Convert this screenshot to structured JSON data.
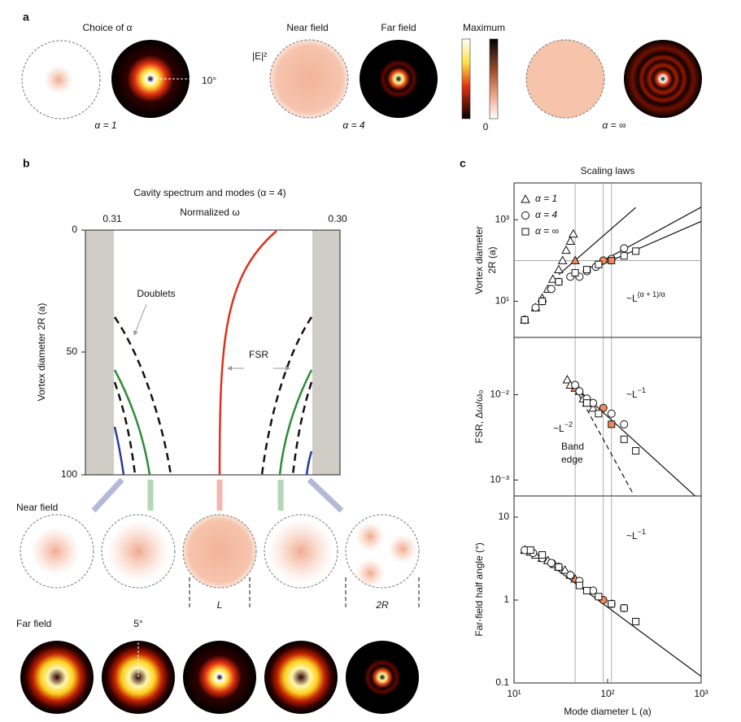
{
  "panel_a": {
    "label": "a",
    "choice_title": "Choice of α",
    "angle": "10°",
    "alpha_labels": [
      "α = 1",
      "α = 4",
      "α = ∞"
    ],
    "near_field": "Near field",
    "far_field": "Far field",
    "field": "|E|²",
    "maximum": "Maximum",
    "zero": "0"
  },
  "panel_b": {
    "label": "b",
    "title": "Cavity spectrum and modes (α = 4)",
    "x_label": "Normalized ω",
    "x_ticks": [
      "0.31",
      "0.30"
    ],
    "y_label": "Vortex diameter 2R (a)",
    "y_ticks": [
      "0",
      "50",
      "100"
    ],
    "doublets": "Doublets",
    "fsr": "FSR",
    "near_field": "Near field",
    "L": "L",
    "two_r": "2R",
    "far_field": "Far field",
    "angle": "5°"
  },
  "panel_c_label": "c",
  "chart_data": [
    {
      "type": "scatter",
      "title": "Scaling laws",
      "y_label": [
        "Vortex diameter",
        "2R (a)"
      ],
      "log": true,
      "legend": "upper left",
      "highlight_color": "#f08a5d",
      "xlim": [
        10,
        1000
      ],
      "ylim": [
        1.3,
        8000
      ],
      "yticks": [
        {
          "value": 10,
          "label": "10¹"
        },
        {
          "value": 1000,
          "label": "10³"
        }
      ],
      "vlines": [
        45,
        90,
        110
      ],
      "hline": 100,
      "series": [
        {
          "name": "α = 1",
          "marker": "triangle",
          "x": [
            13,
            17,
            20,
            23,
            26,
            30,
            33,
            36,
            40,
            43,
            45
          ],
          "values": [
            3.5,
            7,
            12,
            20,
            35,
            60,
            100,
            180,
            300,
            450,
            100
          ],
          "highlight": [
            10
          ]
        },
        {
          "name": "α = 4",
          "marker": "circle",
          "x": [
            13,
            17,
            20,
            25,
            30,
            40,
            50,
            60,
            75,
            90,
            110,
            150
          ],
          "values": [
            3.5,
            7,
            10,
            20,
            30,
            40,
            40,
            55,
            70,
            100,
            110,
            200
          ],
          "highlight": [
            9
          ]
        },
        {
          "name": "α = ∞",
          "marker": "square",
          "x": [
            13,
            20,
            30,
            45,
            60,
            80,
            110,
            150,
            200
          ],
          "values": [
            3.5,
            10,
            30,
            50,
            60,
            80,
            100,
            130,
            170
          ],
          "highlight": [
            6
          ]
        }
      ],
      "fits": [
        {
          "x": [
            30,
            200
          ],
          "values": [
            45,
            2000
          ],
          "dash": false
        },
        {
          "x": [
            60,
            1000
          ],
          "values": [
            60,
            2040
          ],
          "dash": false
        },
        {
          "x": [
            80,
            1000
          ],
          "values": [
            73,
            910
          ],
          "dash": false
        }
      ],
      "annotations": [
        {
          "text": "~L",
          "sup": "(α + 1)/α"
        }
      ]
    },
    {
      "type": "scatter",
      "y_label": [
        "FSR, Δω/ω₀"
      ],
      "log": true,
      "highlight_color": "#f08a5d",
      "xlim": [
        10,
        1000
      ],
      "ylim": [
        0.00065,
        0.047
      ],
      "yticks": [
        {
          "value": 0.001,
          "label": "10⁻³"
        },
        {
          "value": 0.01,
          "label": "10⁻²"
        }
      ],
      "vlines": [
        45,
        90,
        110
      ],
      "series": [
        {
          "name": "α = 1",
          "marker": "triangle",
          "x": [
            37,
            40,
            45,
            50,
            55,
            60,
            70
          ],
          "values": [
            0.015,
            0.013,
            0.012,
            0.011,
            0.009,
            0.008,
            0.007
          ],
          "highlight": [
            2
          ]
        },
        {
          "name": "α = 4",
          "marker": "circle",
          "x": [
            45,
            50,
            60,
            70,
            90,
            110,
            150
          ],
          "values": [
            0.013,
            0.011,
            0.009,
            0.008,
            0.007,
            0.006,
            0.0045
          ],
          "highlight": [
            4
          ]
        },
        {
          "name": "α = ∞",
          "marker": "square",
          "x": [
            60,
            80,
            110,
            150,
            200
          ],
          "values": [
            0.008,
            0.006,
            0.0045,
            0.003,
            0.0022
          ],
          "highlight": [
            2
          ]
        }
      ],
      "fits": [
        {
          "x": [
            37,
            1000
          ],
          "values": [
            0.015,
            0.00056
          ],
          "dash": false
        },
        {
          "x": [
            45,
            190
          ],
          "values": [
            0.012,
            0.00067
          ],
          "dash": true
        }
      ],
      "annotations": [
        {
          "text": "~L",
          "sup": "−1"
        },
        {
          "text": "~L",
          "sup": "−2"
        },
        {
          "text": "Band"
        },
        {
          "text": "edge"
        }
      ]
    },
    {
      "type": "scatter",
      "y_label": [
        "Far-field half angle (°)"
      ],
      "x_label": "Mode diameter L (a)",
      "log": true,
      "highlight_color": "#f08a5d",
      "xlim": [
        10,
        1000
      ],
      "ylim": [
        0.1,
        18
      ],
      "xticks": [
        {
          "value": 10,
          "label": "10¹"
        },
        {
          "value": 100,
          "label": "10²"
        },
        {
          "value": 1000,
          "label": "10³"
        }
      ],
      "yticks": [
        0.1,
        1,
        10
      ],
      "vlines": [
        45,
        90,
        110
      ],
      "series": [
        {
          "name": "α = 1",
          "marker": "triangle",
          "x": [
            13,
            15,
            17,
            20,
            23,
            27,
            30,
            35,
            40,
            45
          ],
          "values": [
            4,
            3.8,
            3.5,
            3.2,
            3,
            2.7,
            2.5,
            2.3,
            2,
            1.8
          ],
          "highlight": [
            9
          ]
        },
        {
          "name": "α = 4",
          "marker": "circle",
          "x": [
            13,
            16,
            20,
            25,
            30,
            40,
            50,
            70,
            90,
            110,
            150
          ],
          "values": [
            4,
            3.7,
            3.2,
            2.8,
            2.5,
            2,
            1.7,
            1.3,
            1,
            0.9,
            0.8
          ],
          "highlight": [
            8
          ]
        },
        {
          "name": "α = ∞",
          "marker": "square",
          "x": [
            15,
            20,
            30,
            50,
            60,
            80,
            110,
            150,
            200
          ],
          "values": [
            4,
            3.5,
            2.5,
            1.5,
            1.3,
            1.1,
            0.9,
            0.8,
            0.55
          ],
          "highlight": []
        }
      ],
      "fits": [
        {
          "x": [
            13,
            1000
          ],
          "values": [
            4.5,
            0.12
          ],
          "dash": false
        }
      ],
      "annotations": [
        {
          "text": "~L",
          "sup": "−1"
        }
      ]
    }
  ]
}
